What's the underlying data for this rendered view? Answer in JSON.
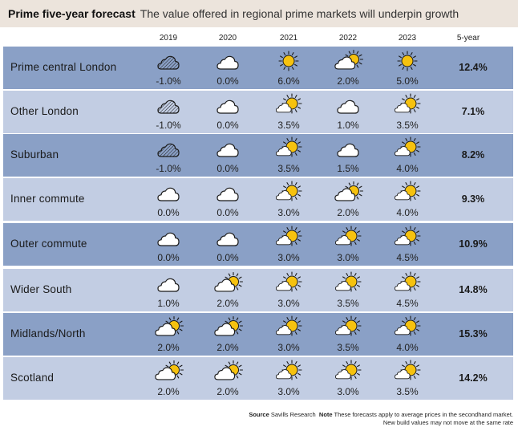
{
  "header": {
    "title": "Prime five-year forecast",
    "subtitle": "The value offered in regional prime markets will underpin growth"
  },
  "chart_data": {
    "type": "table",
    "title": "Prime five-year forecast",
    "subtitle": "The value offered in regional prime markets will underpin growth",
    "columns": [
      "2019",
      "2020",
      "2021",
      "2022",
      "2023",
      "5-year"
    ],
    "rows": [
      {
        "label": "Prime central London",
        "values": [
          "-1.0%",
          "0.0%",
          "6.0%",
          "2.0%",
          "5.0%"
        ],
        "icons": [
          "rain-cloud-icon",
          "cloud-icon",
          "sun-icon",
          "sun-behind-cloud-icon",
          "sun-icon"
        ],
        "five_year": "12.4%"
      },
      {
        "label": "Other London",
        "values": [
          "-1.0%",
          "0.0%",
          "3.5%",
          "1.0%",
          "3.5%"
        ],
        "icons": [
          "rain-cloud-icon",
          "cloud-icon",
          "sun-with-cloud-icon",
          "cloud-icon",
          "sun-with-cloud-icon"
        ],
        "five_year": "7.1%"
      },
      {
        "label": "Suburban",
        "values": [
          "-1.0%",
          "0.0%",
          "3.5%",
          "1.5%",
          "4.0%"
        ],
        "icons": [
          "rain-cloud-icon",
          "cloud-icon",
          "sun-with-cloud-icon",
          "cloud-icon",
          "sun-with-cloud-icon"
        ],
        "five_year": "8.2%"
      },
      {
        "label": "Inner commute",
        "values": [
          "0.0%",
          "0.0%",
          "3.0%",
          "2.0%",
          "4.0%"
        ],
        "icons": [
          "cloud-icon",
          "cloud-icon",
          "sun-with-cloud-icon",
          "sun-behind-cloud-icon",
          "sun-with-cloud-icon"
        ],
        "five_year": "9.3%"
      },
      {
        "label": "Outer commute",
        "values": [
          "0.0%",
          "0.0%",
          "3.0%",
          "3.0%",
          "4.5%"
        ],
        "icons": [
          "cloud-icon",
          "cloud-icon",
          "sun-with-cloud-icon",
          "sun-with-cloud-icon",
          "sun-with-cloud-icon"
        ],
        "five_year": "10.9%"
      },
      {
        "label": "Wider South",
        "values": [
          "1.0%",
          "2.0%",
          "3.0%",
          "3.5%",
          "4.5%"
        ],
        "icons": [
          "cloud-icon",
          "sun-behind-cloud-icon",
          "sun-with-cloud-icon",
          "sun-with-cloud-icon",
          "sun-with-cloud-icon"
        ],
        "five_year": "14.8%"
      },
      {
        "label": "Midlands/North",
        "values": [
          "2.0%",
          "2.0%",
          "3.0%",
          "3.5%",
          "4.0%"
        ],
        "icons": [
          "sun-behind-cloud-icon",
          "sun-behind-cloud-icon",
          "sun-with-cloud-icon",
          "sun-with-cloud-icon",
          "sun-with-cloud-icon"
        ],
        "five_year": "15.3%"
      },
      {
        "label": "Scotland",
        "values": [
          "2.0%",
          "2.0%",
          "3.0%",
          "3.0%",
          "3.5%"
        ],
        "icons": [
          "sun-behind-cloud-icon",
          "sun-behind-cloud-icon",
          "sun-with-cloud-icon",
          "sun-with-cloud-icon",
          "sun-with-cloud-icon"
        ],
        "five_year": "14.2%"
      }
    ]
  },
  "colors": {
    "title_bar": "#ece4dc",
    "row_dark": "#8aa0c6",
    "row_light": "#c2cde3",
    "sun": "#f6c20f",
    "cloud_fill": "#ffffff",
    "stroke": "#1a1a1a"
  },
  "footer": {
    "source_label": "Source",
    "source_text": "Savills Research",
    "note_label": "Note",
    "note_text": "These forecasts apply to average prices in the secondhand market. New build values may not move at the same rate"
  }
}
